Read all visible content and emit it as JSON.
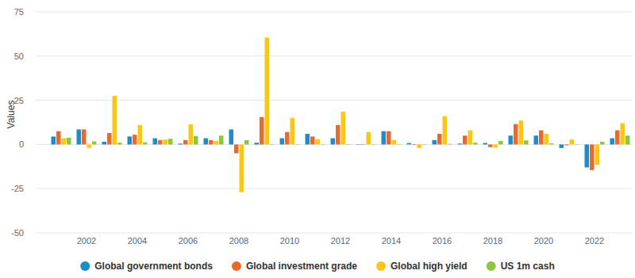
{
  "chart_data": {
    "type": "bar",
    "y_label": "Values",
    "categories": [
      null,
      "2002",
      null,
      "2004",
      null,
      "2006",
      null,
      "2008",
      null,
      "2010",
      null,
      "2012",
      null,
      "2014",
      null,
      "2016",
      null,
      "2018",
      null,
      "2020",
      null,
      "2022",
      null
    ],
    "series": [
      {
        "name": "Global government bonds",
        "color": "#1b8ec5",
        "values": [
          4.5,
          8.5,
          1.5,
          4.5,
          3.5,
          0.5,
          3.5,
          8.5,
          1,
          3.5,
          6,
          3.5,
          -0.2,
          7.5,
          0.8,
          2.5,
          0.5,
          0.8,
          5,
          5,
          -2,
          -13,
          3.5
        ]
      },
      {
        "name": "Global investment grade",
        "color": "#e8692a",
        "values": [
          7.5,
          8.5,
          6.5,
          5.5,
          2.5,
          2.5,
          2.5,
          -5,
          15.5,
          7,
          4.5,
          11,
          0.2,
          7.5,
          -0.3,
          6,
          5,
          -1.5,
          11.5,
          8,
          -0.5,
          -14.5,
          8
        ]
      },
      {
        "name": "Global high yield",
        "color": "#fbc619",
        "values": [
          3.5,
          -2,
          27.5,
          11,
          2.8,
          11.5,
          2,
          -27,
          60.5,
          15,
          3,
          18.5,
          7,
          2.5,
          -2,
          16,
          8,
          -1.8,
          13.5,
          6,
          2.8,
          -11.5,
          12
        ]
      },
      {
        "name": "US 1m cash",
        "color": "#8dc63f",
        "values": [
          3.8,
          1.7,
          1,
          1.2,
          3.2,
          4.8,
          5,
          2.5,
          0.2,
          0.1,
          0.1,
          0.1,
          0.1,
          0.1,
          0.1,
          0.3,
          1,
          2,
          2.3,
          0.6,
          0.1,
          1.5,
          5
        ]
      }
    ],
    "ylim": [
      -50,
      75
    ],
    "yticks": [
      -50,
      -25,
      0,
      25,
      50,
      75
    ],
    "grid": true,
    "legend": "bottom"
  }
}
